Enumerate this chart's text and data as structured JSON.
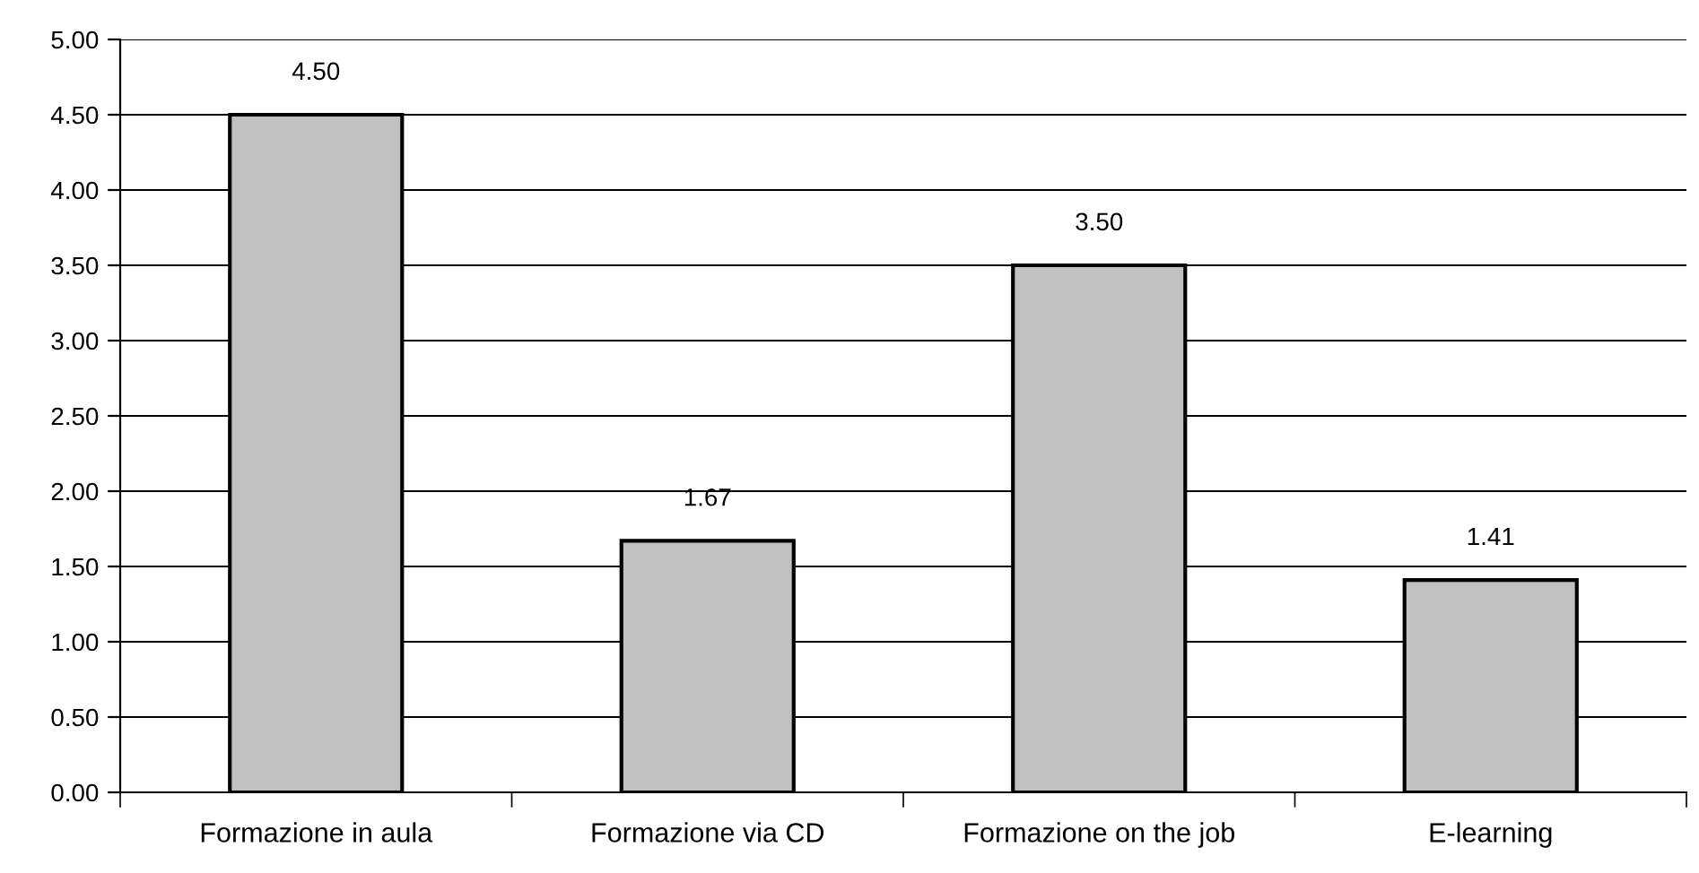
{
  "chart_data": {
    "type": "bar",
    "categories": [
      "Formazione in aula",
      "Formazione via CD",
      "Formazione on the job",
      "E-learning"
    ],
    "values": [
      4.5,
      1.67,
      3.5,
      1.41
    ],
    "value_labels": [
      "4.50",
      "1.67",
      "3.50",
      "1.41"
    ],
    "color": "#c0c0c0",
    "ylim": [
      0,
      5
    ],
    "yticks": [
      {
        "value": 0,
        "label": "0.00"
      },
      {
        "value": 0.5,
        "label": "0.50"
      },
      {
        "value": 1,
        "label": "1.00"
      },
      {
        "value": 1.5,
        "label": "1.50"
      },
      {
        "value": 2,
        "label": "2.00"
      },
      {
        "value": 2.5,
        "label": "2.50"
      },
      {
        "value": 3,
        "label": "3.00"
      },
      {
        "value": 3.5,
        "label": "3.50"
      },
      {
        "value": 4,
        "label": "4.00"
      },
      {
        "value": 4.5,
        "label": "4.50"
      },
      {
        "value": 5,
        "label": "5.00"
      }
    ],
    "grid": "y"
  }
}
